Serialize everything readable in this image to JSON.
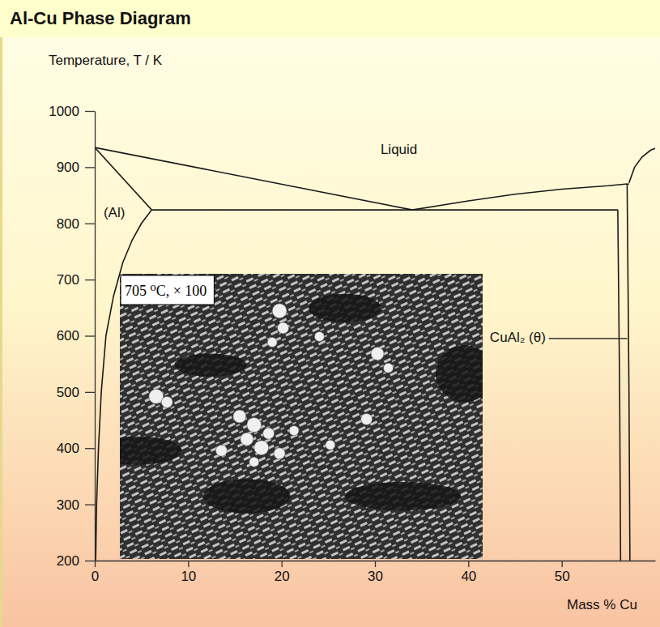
{
  "chart_data": {
    "type": "line",
    "title": "Al-Cu Phase Diagram",
    "y_label": "Temperature, T / K",
    "x_label": "Mass % Cu",
    "xlim": [
      0,
      60
    ],
    "ylim": [
      200,
      1000
    ],
    "xticks": [
      0,
      10,
      20,
      30,
      40,
      50
    ],
    "yticks": [
      200,
      300,
      400,
      500,
      600,
      700,
      800,
      900,
      1000
    ],
    "grid": false,
    "color": "#1a1a1a",
    "series": [
      {
        "x": [
          0,
          34
        ],
        "values": [
          935,
          824
        ]
      },
      {
        "x": [
          34,
          40,
          45,
          50,
          55,
          56.8
        ],
        "values": [
          824,
          840,
          852,
          861,
          867,
          870
        ]
      },
      {
        "x": [
          0,
          6.1
        ],
        "values": [
          935,
          824
        ]
      },
      {
        "x": [
          6.1,
          5,
          4,
          3,
          2,
          1.2,
          0.7,
          0.4,
          0.2,
          0.1
        ],
        "values": [
          824,
          800,
          770,
          730,
          670,
          600,
          500,
          400,
          300,
          200
        ]
      },
      {
        "x": [
          6.1,
          56.0
        ],
        "values": [
          824,
          824
        ]
      },
      {
        "x": [
          56.0,
          56.2,
          56.3
        ],
        "values": [
          824,
          500,
          200
        ]
      },
      {
        "x": [
          56.8,
          57.2
        ],
        "values": [
          870,
          870
        ]
      },
      {
        "x": [
          57.0,
          57.2,
          57.3
        ],
        "values": [
          870,
          500,
          200
        ]
      },
      {
        "x": [
          57.2,
          57.8,
          58.6,
          59.5,
          60.5
        ],
        "values": [
          872,
          900,
          918,
          930,
          937
        ]
      }
    ],
    "annotations": [
      {
        "text": "Liquid",
        "x": 30.6,
        "y": 930
      },
      {
        "text": "(Al)",
        "x": 0.95,
        "y": 817
      },
      {
        "text": "CuAl₂ (θ)",
        "x": 42.3,
        "y": 595,
        "arrow_x": 57.0
      }
    ],
    "inset": {
      "label": "705 ⁰C, × 100"
    }
  }
}
